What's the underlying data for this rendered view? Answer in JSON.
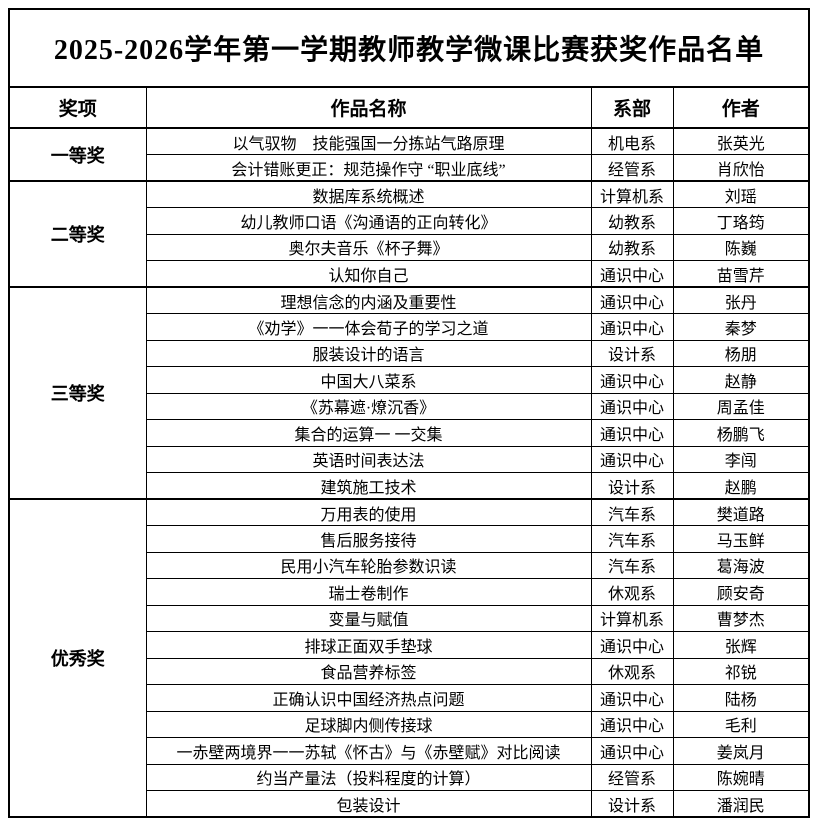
{
  "title": "2025-2026学年第一学期教师教学微课比赛获奖作品名单",
  "columns": [
    "奖项",
    "作品名称",
    "系部",
    "作者"
  ],
  "colors": {
    "border": "#000000",
    "background": "#ffffff",
    "text": "#000000"
  },
  "groups": [
    {
      "award": "一等奖",
      "rows": [
        {
          "work": "以气驭物　技能强国一分拣站气路原理",
          "dept": "机电系",
          "author": "张英光"
        },
        {
          "work": "会计错账更正：规范操作守 “职业底线”",
          "dept": "经管系",
          "author": "肖欣怡"
        }
      ]
    },
    {
      "award": "二等奖",
      "rows": [
        {
          "work": "数据库系统概述",
          "dept": "计算机系",
          "author": "刘瑶"
        },
        {
          "work": "幼儿教师口语《沟通语的正向转化》",
          "dept": "幼教系",
          "author": "丁珞筠"
        },
        {
          "work": "奥尔夫音乐《杯子舞》",
          "dept": "幼教系",
          "author": "陈巍"
        },
        {
          "work": "认知你自己",
          "dept": "通识中心",
          "author": "苗雪芹"
        }
      ]
    },
    {
      "award": "三等奖",
      "rows": [
        {
          "work": "理想信念的内涵及重要性",
          "dept": "通识中心",
          "author": "张丹"
        },
        {
          "work": "《劝学》一一体会荀子的学习之道",
          "dept": "通识中心",
          "author": "秦梦"
        },
        {
          "work": "服装设计的语言",
          "dept": "设计系",
          "author": "杨朋"
        },
        {
          "work": "中国大八菜系",
          "dept": "通识中心",
          "author": "赵静"
        },
        {
          "work": "《苏幕遮·燎沉香》",
          "dept": "通识中心",
          "author": "周孟佳"
        },
        {
          "work": "集合的运算一 一交集",
          "dept": "通识中心",
          "author": "杨鹏飞"
        },
        {
          "work": "英语时间表达法",
          "dept": "通识中心",
          "author": "李闯"
        },
        {
          "work": "建筑施工技术",
          "dept": "设计系",
          "author": "赵鹏"
        }
      ]
    },
    {
      "award": "优秀奖",
      "rows": [
        {
          "work": "万用表的使用",
          "dept": "汽车系",
          "author": "樊道路"
        },
        {
          "work": "售后服务接待",
          "dept": "汽车系",
          "author": "马玉鲜"
        },
        {
          "work": "民用小汽车轮胎参数识读",
          "dept": "汽车系",
          "author": "葛海波"
        },
        {
          "work": "瑞士卷制作",
          "dept": "休观系",
          "author": "顾安奇"
        },
        {
          "work": "变量与赋值",
          "dept": "计算机系",
          "author": "曹梦杰"
        },
        {
          "work": "排球正面双手垫球",
          "dept": "通识中心",
          "author": "张辉"
        },
        {
          "work": "食品营养标签",
          "dept": "休观系",
          "author": "祁锐"
        },
        {
          "work": "正确认识中国经济热点问题",
          "dept": "通识中心",
          "author": "陆杨"
        },
        {
          "work": "足球脚内侧传接球",
          "dept": "通识中心",
          "author": "毛利"
        },
        {
          "work": "一赤壁两境界一一苏轼《怀古》与《赤壁赋》对比阅读",
          "dept": "通识中心",
          "author": "姜岚月"
        },
        {
          "work": "约当产量法（投料程度的计算）",
          "dept": "经管系",
          "author": "陈婉晴"
        },
        {
          "work": "包装设计",
          "dept": "设计系",
          "author": "潘润民"
        }
      ]
    }
  ]
}
